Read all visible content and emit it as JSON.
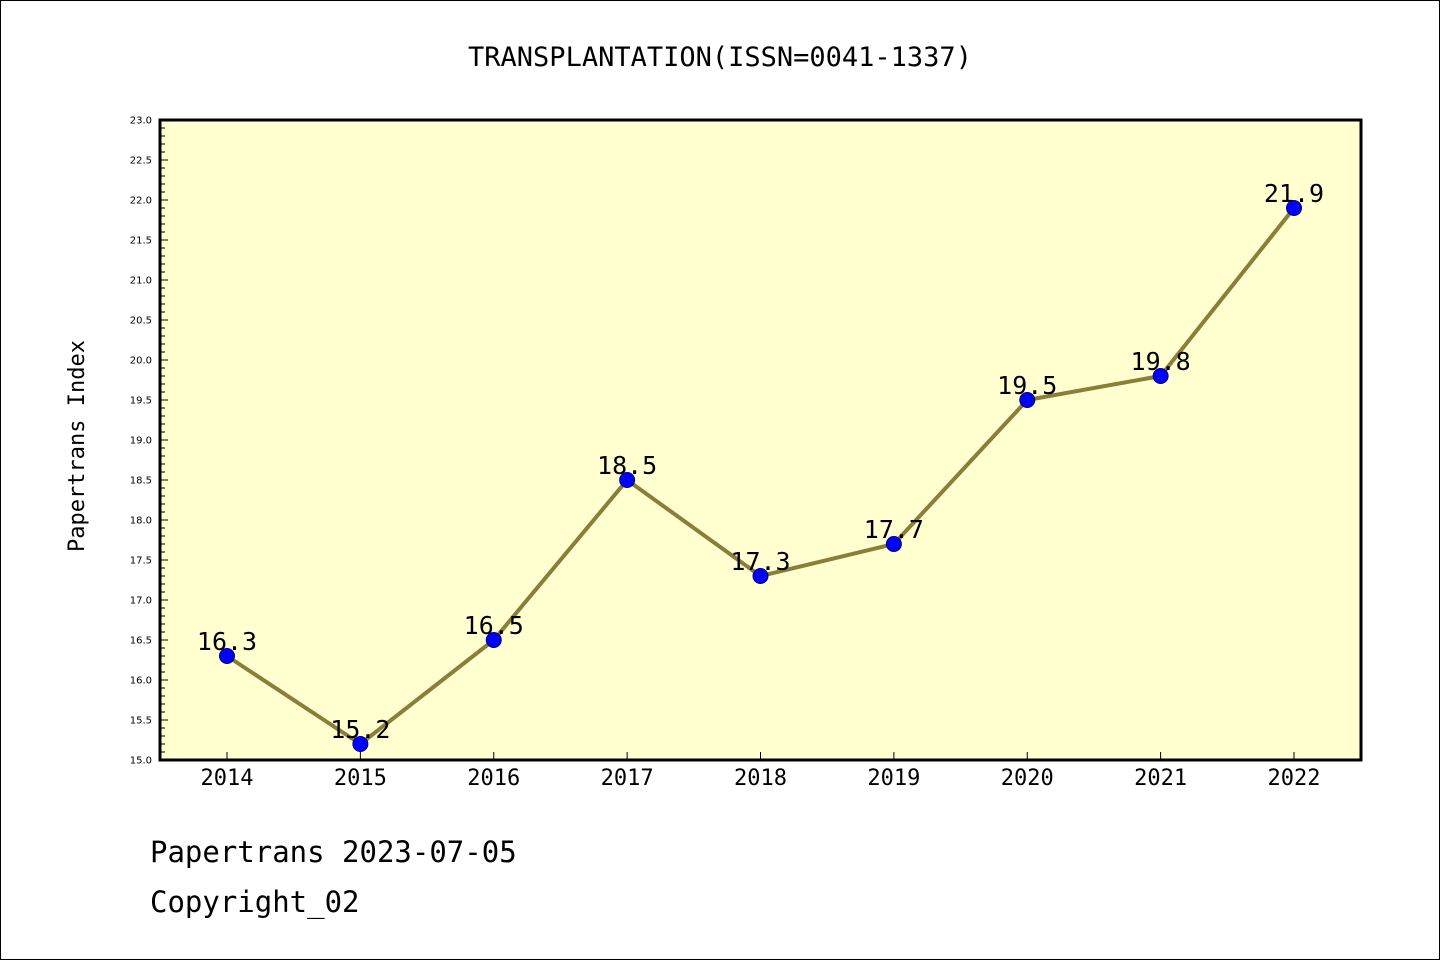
{
  "chart_data": {
    "type": "line",
    "title": "TRANSPLANTATION(ISSN=0041-1337)",
    "xlabel": "",
    "ylabel": "Papertrans Index",
    "categories": [
      "2014",
      "2015",
      "2016",
      "2017",
      "2018",
      "2019",
      "2020",
      "2021",
      "2022"
    ],
    "values": [
      16.3,
      15.2,
      16.5,
      18.5,
      17.3,
      17.7,
      19.5,
      19.8,
      21.9
    ],
    "data_labels": [
      "16.3",
      "15.2",
      "16.5",
      "18.5",
      "17.3",
      "17.7",
      "19.5",
      "19.8",
      "21.9"
    ],
    "ylim": [
      15.0,
      23.0
    ],
    "yticks": [
      "15.0",
      "15.5",
      "16.0",
      "16.5",
      "17.0",
      "17.5",
      "18.0",
      "18.5",
      "19.0",
      "19.5",
      "20.0",
      "20.5",
      "21.0",
      "21.5",
      "22.0",
      "22.5",
      "23.0"
    ],
    "grid": false,
    "colors": {
      "plot_background": "#ffffd0",
      "line": "#8b7d3a",
      "marker": "#0000ff",
      "marker_edge": "#000080"
    }
  },
  "footer": {
    "date_line": "Papertrans 2023-07-05",
    "copyright": "Copyright_02"
  }
}
